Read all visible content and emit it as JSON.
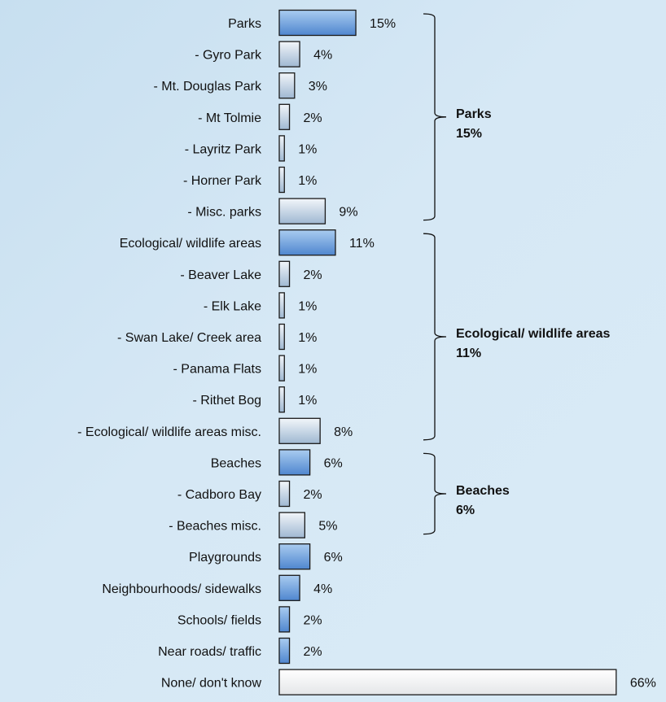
{
  "chart_data": {
    "type": "bar",
    "orientation": "horizontal",
    "categories": [
      "Parks",
      "- Gyro Park",
      "- Mt. Douglas Park",
      "- Mt Tolmie",
      "- Layritz Park",
      "- Horner Park",
      "- Misc. parks",
      "Ecological/ wildlife areas",
      "- Beaver Lake",
      "- Elk Lake",
      "- Swan Lake/ Creek area",
      "- Panama Flats",
      "- Rithet Bog",
      "- Ecological/ wildlife areas misc.",
      "Beaches",
      "- Cadboro Bay",
      "- Beaches misc.",
      "Playgrounds",
      "Neighbourhoods/ sidewalks",
      "Schools/  fields",
      "Near roads/ traffic",
      "None/ don't know"
    ],
    "values": [
      15,
      4,
      3,
      2,
      1,
      1,
      9,
      11,
      2,
      1,
      1,
      1,
      1,
      8,
      6,
      2,
      5,
      6,
      4,
      2,
      2,
      66
    ],
    "value_labels": [
      "15%",
      "4%",
      "3%",
      "2%",
      "1%",
      "1%",
      "9%",
      "11%",
      "2%",
      "1%",
      "1%",
      "1%",
      "1%",
      "8%",
      "6%",
      "2%",
      "5%",
      "6%",
      "4%",
      "2%",
      "2%",
      "66%"
    ],
    "bar_styles": [
      "main",
      "sub",
      "sub",
      "sub",
      "sub",
      "sub",
      "sub",
      "main",
      "sub",
      "sub",
      "sub",
      "sub",
      "sub",
      "sub",
      "main",
      "sub",
      "sub",
      "main",
      "main",
      "main",
      "main",
      "none"
    ],
    "colors": {
      "main_light": "#a9ccf0",
      "main_dark": "#4f86cf",
      "sub_light": "#f2f6fa",
      "sub_dark": "#9fb8d2",
      "none_light": "#ffffff",
      "none_dark": "#e4e6e8"
    },
    "groups": [
      {
        "title": "Parks",
        "value": "15%",
        "start": 0,
        "end": 6
      },
      {
        "title": "Ecological/ wildlife areas",
        "value": "11%",
        "start": 7,
        "end": 13
      },
      {
        "title": "Beaches",
        "value": "6%",
        "start": 14,
        "end": 16
      }
    ],
    "title": "",
    "xlabel": "",
    "ylabel": "",
    "xlim": [
      0,
      66
    ],
    "grid": false,
    "legend": "none"
  }
}
